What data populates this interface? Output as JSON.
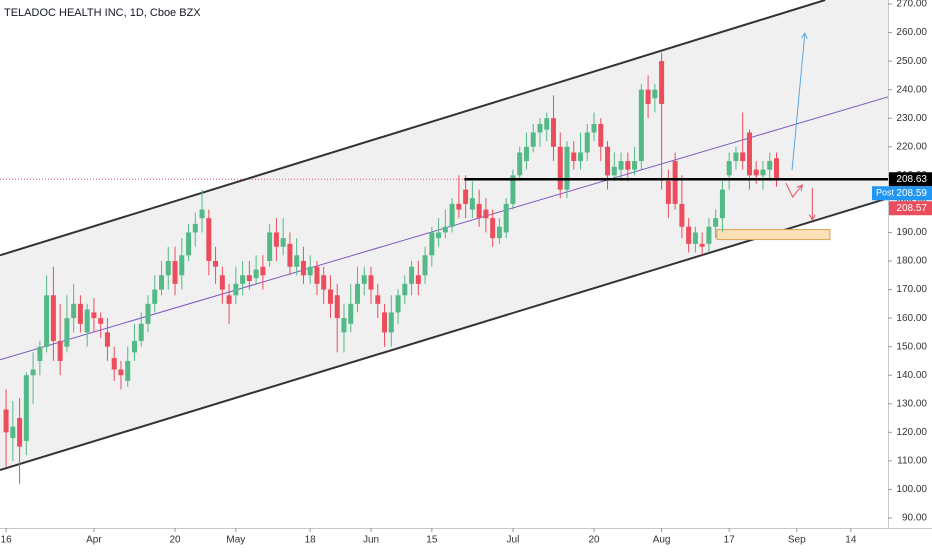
{
  "chart_data": {
    "type": "candlestick",
    "title": "TELADOC HEALTH INC, 1D, Cboe BZX",
    "up_color": "#53b987",
    "down_color": "#eb4d5c",
    "xlim": [
      -0.9,
      130.5
    ],
    "ylim": [
      86.5,
      271.4
    ],
    "xticks": [
      {
        "value": 0,
        "label": "16"
      },
      {
        "value": 13,
        "label": "Apr"
      },
      {
        "value": 25,
        "label": "20"
      },
      {
        "value": 34,
        "label": "May"
      },
      {
        "value": 45,
        "label": "18"
      },
      {
        "value": 54,
        "label": "Jun"
      },
      {
        "value": 63,
        "label": "15"
      },
      {
        "value": 75,
        "label": "Jul"
      },
      {
        "value": 87,
        "label": "20"
      },
      {
        "value": 97,
        "label": "Aug"
      },
      {
        "value": 107,
        "label": "17"
      },
      {
        "value": 117,
        "label": "Sep"
      },
      {
        "value": 125,
        "label": "14"
      }
    ],
    "yticks": [
      {
        "value": 270,
        "label": "270.00"
      },
      {
        "value": 260,
        "label": "260.00"
      },
      {
        "value": 250,
        "label": "250.00"
      },
      {
        "value": 240,
        "label": "240.00"
      },
      {
        "value": 230,
        "label": "230.00"
      },
      {
        "value": 220,
        "label": "220.00"
      },
      {
        "value": 210,
        "label": "210.00"
      },
      {
        "value": 200,
        "label": "200.00"
      },
      {
        "value": 190,
        "label": "190.00"
      },
      {
        "value": 180,
        "label": "180.00"
      },
      {
        "value": 170,
        "label": "170.00"
      },
      {
        "value": 160,
        "label": "160.00"
      },
      {
        "value": 150,
        "label": "150.00"
      },
      {
        "value": 140,
        "label": "140.00"
      },
      {
        "value": 130,
        "label": "130.00"
      },
      {
        "value": 120,
        "label": "120.00"
      },
      {
        "value": 110,
        "label": "110.00"
      },
      {
        "value": 100,
        "label": "100.00"
      },
      {
        "value": 90,
        "label": "90.00"
      }
    ],
    "candles": [
      [
        128,
        135,
        108,
        120
      ],
      [
        118,
        131,
        110,
        122
      ],
      [
        125,
        132,
        102,
        115
      ],
      [
        117,
        141,
        112,
        140
      ],
      [
        140,
        148,
        130,
        142
      ],
      [
        145,
        152,
        140,
        150
      ],
      [
        150,
        175,
        148,
        168
      ],
      [
        168,
        178,
        145,
        152
      ],
      [
        152,
        165,
        140,
        145
      ],
      [
        150,
        168,
        148,
        160
      ],
      [
        160,
        172,
        155,
        165
      ],
      [
        165,
        168,
        155,
        158
      ],
      [
        155,
        165,
        150,
        163
      ],
      [
        162,
        167,
        155,
        160
      ],
      [
        160,
        162,
        153,
        158
      ],
      [
        155,
        160,
        145,
        150
      ],
      [
        146,
        150,
        138,
        142
      ],
      [
        142,
        145,
        135,
        140
      ],
      [
        138,
        150,
        136,
        145
      ],
      [
        148,
        158,
        145,
        152
      ],
      [
        152,
        162,
        150,
        158
      ],
      [
        158,
        168,
        155,
        165
      ],
      [
        165,
        175,
        162,
        170
      ],
      [
        170,
        180,
        168,
        175
      ],
      [
        175,
        185,
        170,
        180
      ],
      [
        180,
        185,
        168,
        172
      ],
      [
        175,
        188,
        170,
        182
      ],
      [
        182,
        193,
        180,
        190
      ],
      [
        190,
        197,
        185,
        193
      ],
      [
        195,
        205,
        190,
        198
      ],
      [
        195,
        198,
        175,
        180
      ],
      [
        180,
        185,
        172,
        178
      ],
      [
        175,
        178,
        165,
        170
      ],
      [
        168,
        172,
        158,
        165
      ],
      [
        168,
        178,
        165,
        172
      ],
      [
        172,
        180,
        168,
        175
      ],
      [
        175,
        180,
        170,
        173
      ],
      [
        174,
        182,
        172,
        177
      ],
      [
        178,
        182,
        170,
        175
      ],
      [
        180,
        193,
        178,
        190
      ],
      [
        190,
        195,
        180,
        185
      ],
      [
        185,
        195,
        182,
        188
      ],
      [
        186,
        190,
        175,
        178
      ],
      [
        178,
        188,
        175,
        182
      ],
      [
        180,
        185,
        172,
        175
      ],
      [
        175,
        182,
        172,
        178
      ],
      [
        178,
        180,
        168,
        172
      ],
      [
        175,
        178,
        165,
        170
      ],
      [
        170,
        175,
        160,
        165
      ],
      [
        168,
        172,
        148,
        160
      ],
      [
        155,
        165,
        148,
        160
      ],
      [
        158,
        172,
        155,
        165
      ],
      [
        165,
        178,
        162,
        172
      ],
      [
        172,
        178,
        168,
        175
      ],
      [
        175,
        178,
        165,
        170
      ],
      [
        168,
        172,
        160,
        165
      ],
      [
        162,
        165,
        150,
        155
      ],
      [
        155,
        168,
        150,
        162
      ],
      [
        162,
        170,
        158,
        168
      ],
      [
        168,
        175,
        165,
        172
      ],
      [
        172,
        180,
        168,
        178
      ],
      [
        175,
        180,
        168,
        172
      ],
      [
        175,
        185,
        172,
        182
      ],
      [
        182,
        192,
        178,
        190
      ],
      [
        188,
        195,
        185,
        190
      ],
      [
        190,
        198,
        188,
        192
      ],
      [
        192,
        202,
        190,
        200
      ],
      [
        200,
        210,
        195,
        198
      ],
      [
        205,
        210,
        195,
        200
      ],
      [
        198,
        208,
        195,
        202
      ],
      [
        200,
        205,
        192,
        195
      ],
      [
        198,
        202,
        190,
        195
      ],
      [
        195,
        198,
        185,
        188
      ],
      [
        188,
        195,
        186,
        192
      ],
      [
        190,
        202,
        188,
        200
      ],
      [
        200,
        212,
        198,
        210
      ],
      [
        210,
        220,
        208,
        218
      ],
      [
        215,
        225,
        212,
        220
      ],
      [
        220,
        228,
        218,
        225
      ],
      [
        225,
        230,
        220,
        228
      ],
      [
        226,
        232,
        222,
        230
      ],
      [
        230,
        238,
        215,
        220
      ],
      [
        220,
        225,
        202,
        205
      ],
      [
        205,
        222,
        202,
        220
      ],
      [
        218,
        222,
        212,
        215
      ],
      [
        215,
        225,
        212,
        218
      ],
      [
        218,
        228,
        215,
        225
      ],
      [
        225,
        232,
        222,
        228
      ],
      [
        228,
        230,
        215,
        220
      ],
      [
        220,
        222,
        205,
        210
      ],
      [
        210,
        218,
        208,
        213
      ],
      [
        212,
        218,
        208,
        215
      ],
      [
        215,
        218,
        208,
        212
      ],
      [
        212,
        220,
        210,
        215
      ],
      [
        215,
        242,
        212,
        240
      ],
      [
        240,
        245,
        230,
        235
      ],
      [
        237,
        242,
        232,
        240
      ],
      [
        250,
        253,
        205,
        235
      ],
      [
        208,
        212,
        195,
        200
      ],
      [
        215,
        218,
        198,
        200
      ],
      [
        200,
        210,
        188,
        192
      ],
      [
        192,
        195,
        183,
        186
      ],
      [
        186,
        192,
        183,
        190
      ],
      [
        186,
        190,
        182,
        185
      ],
      [
        186,
        195,
        183,
        192
      ],
      [
        192,
        198,
        188,
        195
      ],
      [
        195,
        208,
        190,
        205
      ],
      [
        210,
        218,
        205,
        215
      ],
      [
        215,
        220,
        212,
        218
      ],
      [
        218,
        232,
        212,
        215
      ],
      [
        225,
        226,
        205,
        210
      ],
      [
        212,
        215,
        207,
        210
      ],
      [
        210,
        215,
        205,
        212
      ],
      [
        212,
        218,
        208,
        215
      ],
      [
        216,
        218,
        206,
        208.57
      ]
    ],
    "drawings": {
      "upper_channel": {
        "x": [
          -0.9,
          121.2
        ],
        "y": [
          182,
          271.4
        ]
      },
      "lower_channel": {
        "x": [
          -0.9,
          130.5
        ],
        "y": [
          106.8,
          202
        ]
      },
      "mid_line": {
        "x": [
          -0.9,
          134.1
        ],
        "y": [
          145.4,
          240
        ]
      },
      "level": {
        "x": [
          67.8,
          130.5
        ],
        "y": [
          208.63,
          208.63
        ]
      },
      "zone": {
        "x": [
          105.2,
          121.9
        ],
        "y": [
          191,
          187.5
        ]
      },
      "up_arrow": {
        "x": [
          116.3,
          118.2
        ],
        "y": [
          211.8,
          259.8
        ]
      },
      "down_arrow_1": {
        "x": [
          115.4,
          116.4,
          117.8
        ],
        "y": [
          207.3,
          202.4,
          206.6
        ]
      },
      "down_arrow_2": {
        "x": [
          119.3,
          119.3
        ],
        "y": [
          205.6,
          194.4
        ]
      }
    },
    "price_labels": {
      "level": {
        "value": 208.63,
        "label": "208.63"
      },
      "post": {
        "tag": "Post",
        "value": 208.59,
        "label": "208.59"
      },
      "last": {
        "value": 208.57,
        "label": "208.57"
      }
    }
  }
}
